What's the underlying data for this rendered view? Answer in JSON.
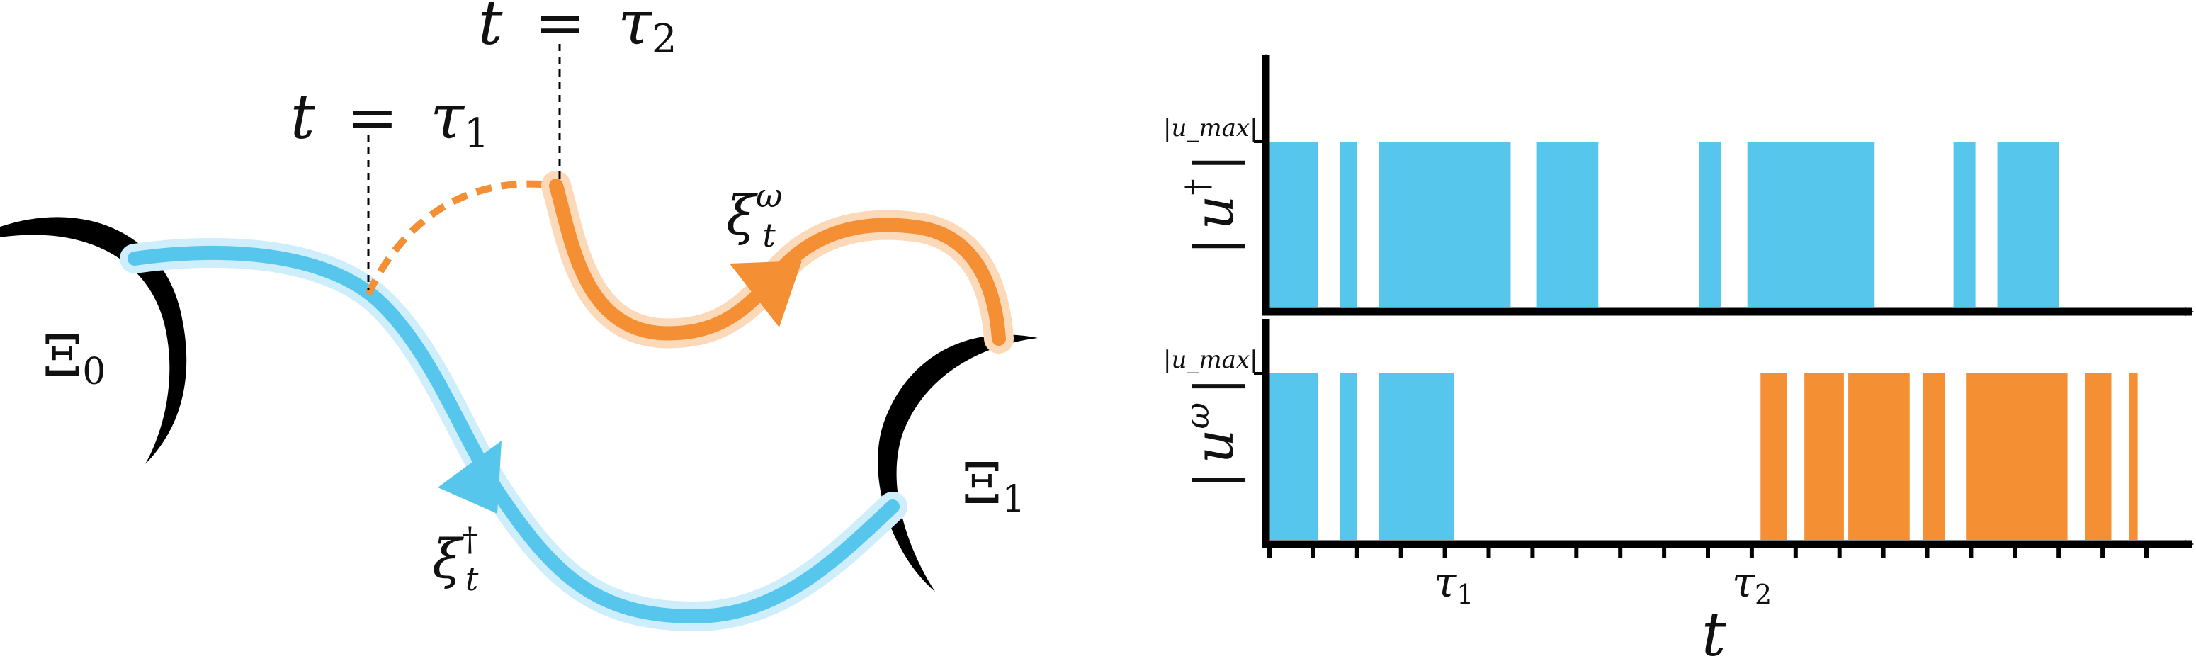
{
  "colors": {
    "blue": "#56C6ED",
    "blue_halo": "#CDEEFA",
    "orange": "#F48F34",
    "orange_halo": "#FBD9B9",
    "ink": "#000000"
  },
  "left_diagram": {
    "tau1_label": {
      "lhs": "t",
      "eq": "=",
      "sym": "τ",
      "sub": "1"
    },
    "tau2_label": {
      "lhs": "t",
      "eq": "=",
      "sym": "τ",
      "sub": "2"
    },
    "xi_omega": {
      "sym": "ξ",
      "sub": "t",
      "sup": "ω"
    },
    "xi_dagger": {
      "sym": "ξ",
      "sub": "t",
      "sup": "†"
    },
    "set0": {
      "sym": "Ξ",
      "sub": "0"
    },
    "set1": {
      "sym": "Ξ",
      "sub": "1"
    }
  },
  "chart_data": [
    {
      "type": "bar",
      "name": "top-panel",
      "ylabel": {
        "sym": "u",
        "sup": "†"
      },
      "level_label": "u_max",
      "x_range": [
        0,
        20
      ],
      "segments": [
        {
          "start": 0.0,
          "end": 1.1,
          "color": "blue"
        },
        {
          "start": 1.6,
          "end": 2.0,
          "color": "blue"
        },
        {
          "start": 2.5,
          "end": 5.5,
          "color": "blue"
        },
        {
          "start": 6.1,
          "end": 7.5,
          "color": "blue"
        },
        {
          "start": 9.8,
          "end": 10.3,
          "color": "blue"
        },
        {
          "start": 10.9,
          "end": 13.8,
          "color": "blue"
        },
        {
          "start": 15.6,
          "end": 16.1,
          "color": "blue"
        },
        {
          "start": 16.6,
          "end": 18.0,
          "color": "blue"
        }
      ]
    },
    {
      "type": "bar",
      "name": "bottom-panel",
      "ylabel": {
        "sym": "u",
        "sup": "ω"
      },
      "level_label": "u_max",
      "xlabel": "t",
      "x_range": [
        0,
        20
      ],
      "tick_count": 20,
      "tick_labels": [
        {
          "at": 4.2,
          "sym": "τ",
          "sub": "1"
        },
        {
          "at": 11.0,
          "sym": "τ",
          "sub": "2"
        }
      ],
      "segments": [
        {
          "start": 0.0,
          "end": 1.1,
          "color": "blue"
        },
        {
          "start": 1.6,
          "end": 2.0,
          "color": "blue"
        },
        {
          "start": 2.5,
          "end": 4.2,
          "color": "blue"
        },
        {
          "start": 11.2,
          "end": 11.8,
          "color": "orange"
        },
        {
          "start": 12.2,
          "end": 13.1,
          "color": "orange"
        },
        {
          "start": 13.2,
          "end": 14.6,
          "color": "orange"
        },
        {
          "start": 14.9,
          "end": 15.4,
          "color": "orange"
        },
        {
          "start": 15.9,
          "end": 18.2,
          "color": "orange"
        },
        {
          "start": 18.6,
          "end": 19.2,
          "color": "orange"
        },
        {
          "start": 19.6,
          "end": 19.8,
          "color": "orange"
        }
      ]
    }
  ]
}
